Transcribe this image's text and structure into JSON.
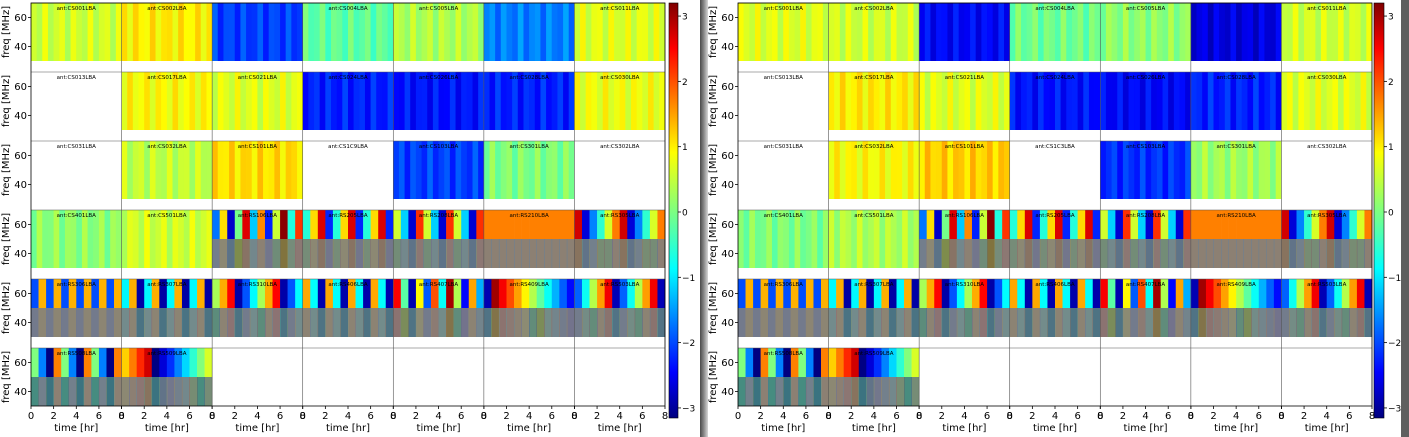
{
  "chart_data": {
    "type": "heatmap",
    "xlabel": "time [hr]",
    "ylabel": "freq [MHz]",
    "x_range": [
      0,
      8
    ],
    "x_ticks": [
      0,
      2,
      4,
      6,
      8
    ],
    "y_ticks": [
      40,
      60
    ],
    "y_range": [
      30,
      70
    ],
    "colorbar_range": [
      -3.2,
      3.2
    ],
    "colorbar_ticks": [
      -3,
      -2,
      -1,
      0,
      1,
      2,
      3
    ],
    "colormap": "jet",
    "grid": {
      "rows": 6,
      "cols": 7
    },
    "panels": [
      {
        "name": "left",
        "cells": [
          [
            {
              "label": "ant:CS001LBA",
              "kind": "flat",
              "v": 0.5
            },
            {
              "label": "ant:CS002LBA",
              "kind": "flat",
              "v": 0.9
            },
            {
              "label": "",
              "kind": "flat",
              "v": -2.0
            },
            {
              "label": "ant:CS004LBA",
              "kind": "flat",
              "v": -0.2
            },
            {
              "label": "ant:CS005LBA",
              "kind": "flat",
              "v": 0.3
            },
            {
              "label": "",
              "kind": "flat",
              "v": -1.6
            },
            {
              "label": "ant:CS011LBA",
              "kind": "flat",
              "v": 0.6
            }
          ],
          [
            {
              "label": "ant:CS013LBA",
              "kind": "empty"
            },
            {
              "label": "ant:CS017LBA",
              "kind": "flat",
              "v": 0.8
            },
            {
              "label": "ant:CS021LBA",
              "kind": "flat",
              "v": 0.6
            },
            {
              "label": "ant:CS024LBA",
              "kind": "flat",
              "v": -2.2
            },
            {
              "label": "ant:CS026LBA",
              "kind": "flat",
              "v": -2.3
            },
            {
              "label": "ant:CS028LBA",
              "kind": "flat",
              "v": -2.2
            },
            {
              "label": "ant:CS030LBA",
              "kind": "flat",
              "v": 0.7
            }
          ],
          [
            {
              "label": "ant:CS031LBA",
              "kind": "empty"
            },
            {
              "label": "ant:CS032LBA",
              "kind": "flat",
              "v": 0.4
            },
            {
              "label": "ant:CS101LBA",
              "kind": "flat",
              "v": 1.0
            },
            {
              "label": "ant:CS1C9LBA",
              "kind": "empty"
            },
            {
              "label": "ant:CS103LBA",
              "kind": "flat",
              "v": -2.0
            },
            {
              "label": "ant:CS301LBA",
              "kind": "flat",
              "v": 0.0
            },
            {
              "label": "ant:CS302LBA",
              "kind": "empty"
            }
          ],
          [
            {
              "label": "ant:CS401LBA",
              "kind": "flat",
              "v": 0.1
            },
            {
              "label": "ant:CS501LBA",
              "kind": "flat",
              "v": 0.5
            },
            {
              "label": "ant:RS106LBA",
              "kind": "wave",
              "v": 5
            },
            {
              "label": "ant:RS205LBA",
              "kind": "wave",
              "v": 3
            },
            {
              "label": "ant:RS208LBA",
              "kind": "wave",
              "v": 9
            },
            {
              "label": "ant:RS210LBA",
              "kind": "wave",
              "v": 12
            },
            {
              "label": "ant:RS305LBA",
              "kind": "wave",
              "v": 2
            }
          ],
          [
            {
              "label": "ant:RS306LBA",
              "kind": "wave",
              "v": 6
            },
            {
              "label": "ant:RS307LBA",
              "kind": "wave",
              "v": 4
            },
            {
              "label": "ant:RS310LBA",
              "kind": "wave",
              "v": 14
            },
            {
              "label": "ant:RS406LBA",
              "kind": "wave",
              "v": 8
            },
            {
              "label": "ant:RS407LBA",
              "kind": "wave",
              "v": 7
            },
            {
              "label": "ant:RS409LBA",
              "kind": "wave",
              "v": 11
            },
            {
              "label": "ant:RS503LBA",
              "kind": "wave",
              "v": 2
            }
          ],
          [
            {
              "label": "ant:RS508LBA",
              "kind": "wave",
              "v": 9
            },
            {
              "label": "ant:RS509LBA",
              "kind": "wave",
              "v": 13
            },
            {
              "label": "",
              "kind": "empty"
            },
            {
              "label": "",
              "kind": "empty"
            },
            {
              "label": "",
              "kind": "empty"
            },
            {
              "label": "",
              "kind": "empty"
            },
            {
              "label": "",
              "kind": "empty"
            }
          ]
        ]
      },
      {
        "name": "right",
        "cells": [
          [
            {
              "label": "ant:CS001LBA",
              "kind": "flat",
              "v": 0.6
            },
            {
              "label": "ant:CS002LBA",
              "kind": "flat",
              "v": 0.5
            },
            {
              "label": "",
              "kind": "flat",
              "v": -2.4
            },
            {
              "label": "ant:CS004LBA",
              "kind": "flat",
              "v": -0.1
            },
            {
              "label": "ant:CS005LBA",
              "kind": "flat",
              "v": 0.1
            },
            {
              "label": "",
              "kind": "flat",
              "v": -2.6
            },
            {
              "label": "ant:CS011LBA",
              "kind": "flat",
              "v": 0.5
            }
          ],
          [
            {
              "label": "ant:CS013LBA",
              "kind": "empty"
            },
            {
              "label": "ant:CS017LBA",
              "kind": "flat",
              "v": 0.9
            },
            {
              "label": "ant:CS021LBA",
              "kind": "flat",
              "v": 0.6
            },
            {
              "label": "ant:CS024LBA",
              "kind": "flat",
              "v": -2.3
            },
            {
              "label": "ant:CS026LBA",
              "kind": "flat",
              "v": -2.4
            },
            {
              "label": "ant:CS028LBA",
              "kind": "flat",
              "v": -2.2
            },
            {
              "label": "ant:CS030LBA",
              "kind": "flat",
              "v": 0.6
            }
          ],
          [
            {
              "label": "ant:CS031LBA",
              "kind": "empty"
            },
            {
              "label": "ant:CS032LBA",
              "kind": "flat",
              "v": 0.8
            },
            {
              "label": "ant:CS101LBA",
              "kind": "flat",
              "v": 1.1
            },
            {
              "label": "ant:CS1C3LBA",
              "kind": "empty"
            },
            {
              "label": "ant:CS103LBA",
              "kind": "flat",
              "v": -2.1
            },
            {
              "label": "ant:CS301LBA",
              "kind": "flat",
              "v": 0.2
            },
            {
              "label": "ant:CS302LBA",
              "kind": "empty"
            }
          ],
          [
            {
              "label": "ant:CS401LBA",
              "kind": "flat",
              "v": 0.0
            },
            {
              "label": "ant:CS501LBA",
              "kind": "flat",
              "v": 0.3
            },
            {
              "label": "ant:RS106LBA",
              "kind": "wave",
              "v": 5
            },
            {
              "label": "ant:RS205LBA",
              "kind": "wave",
              "v": 3
            },
            {
              "label": "ant:RS208LBA",
              "kind": "wave",
              "v": 9
            },
            {
              "label": "ant:RS210LBA",
              "kind": "wave",
              "v": 12
            },
            {
              "label": "ant:RS305LBA",
              "kind": "wave",
              "v": 2
            }
          ],
          [
            {
              "label": "ant:RS306LBA",
              "kind": "wave",
              "v": 6
            },
            {
              "label": "ant:RS307LBA",
              "kind": "wave",
              "v": 4
            },
            {
              "label": "ant:RS310LBA",
              "kind": "wave",
              "v": 14
            },
            {
              "label": "ant:RS406LBA",
              "kind": "wave",
              "v": 8
            },
            {
              "label": "ant:RS407LBA",
              "kind": "wave",
              "v": 7
            },
            {
              "label": "ant:RS409LBA",
              "kind": "wave",
              "v": 11
            },
            {
              "label": "ant:RS503LBA",
              "kind": "wave",
              "v": 2
            }
          ],
          [
            {
              "label": "ant:RS508LBA",
              "kind": "wave",
              "v": 9
            },
            {
              "label": "ant:RS509LBA",
              "kind": "wave",
              "v": 13
            },
            {
              "label": "",
              "kind": "empty"
            },
            {
              "label": "",
              "kind": "empty"
            },
            {
              "label": "",
              "kind": "empty"
            },
            {
              "label": "",
              "kind": "empty"
            },
            {
              "label": "",
              "kind": "empty"
            }
          ]
        ]
      }
    ]
  },
  "colors": {
    "background": "#ffffff",
    "divider": "#5f5f5f",
    "axis": "#000000",
    "missing": "#ffffff"
  }
}
